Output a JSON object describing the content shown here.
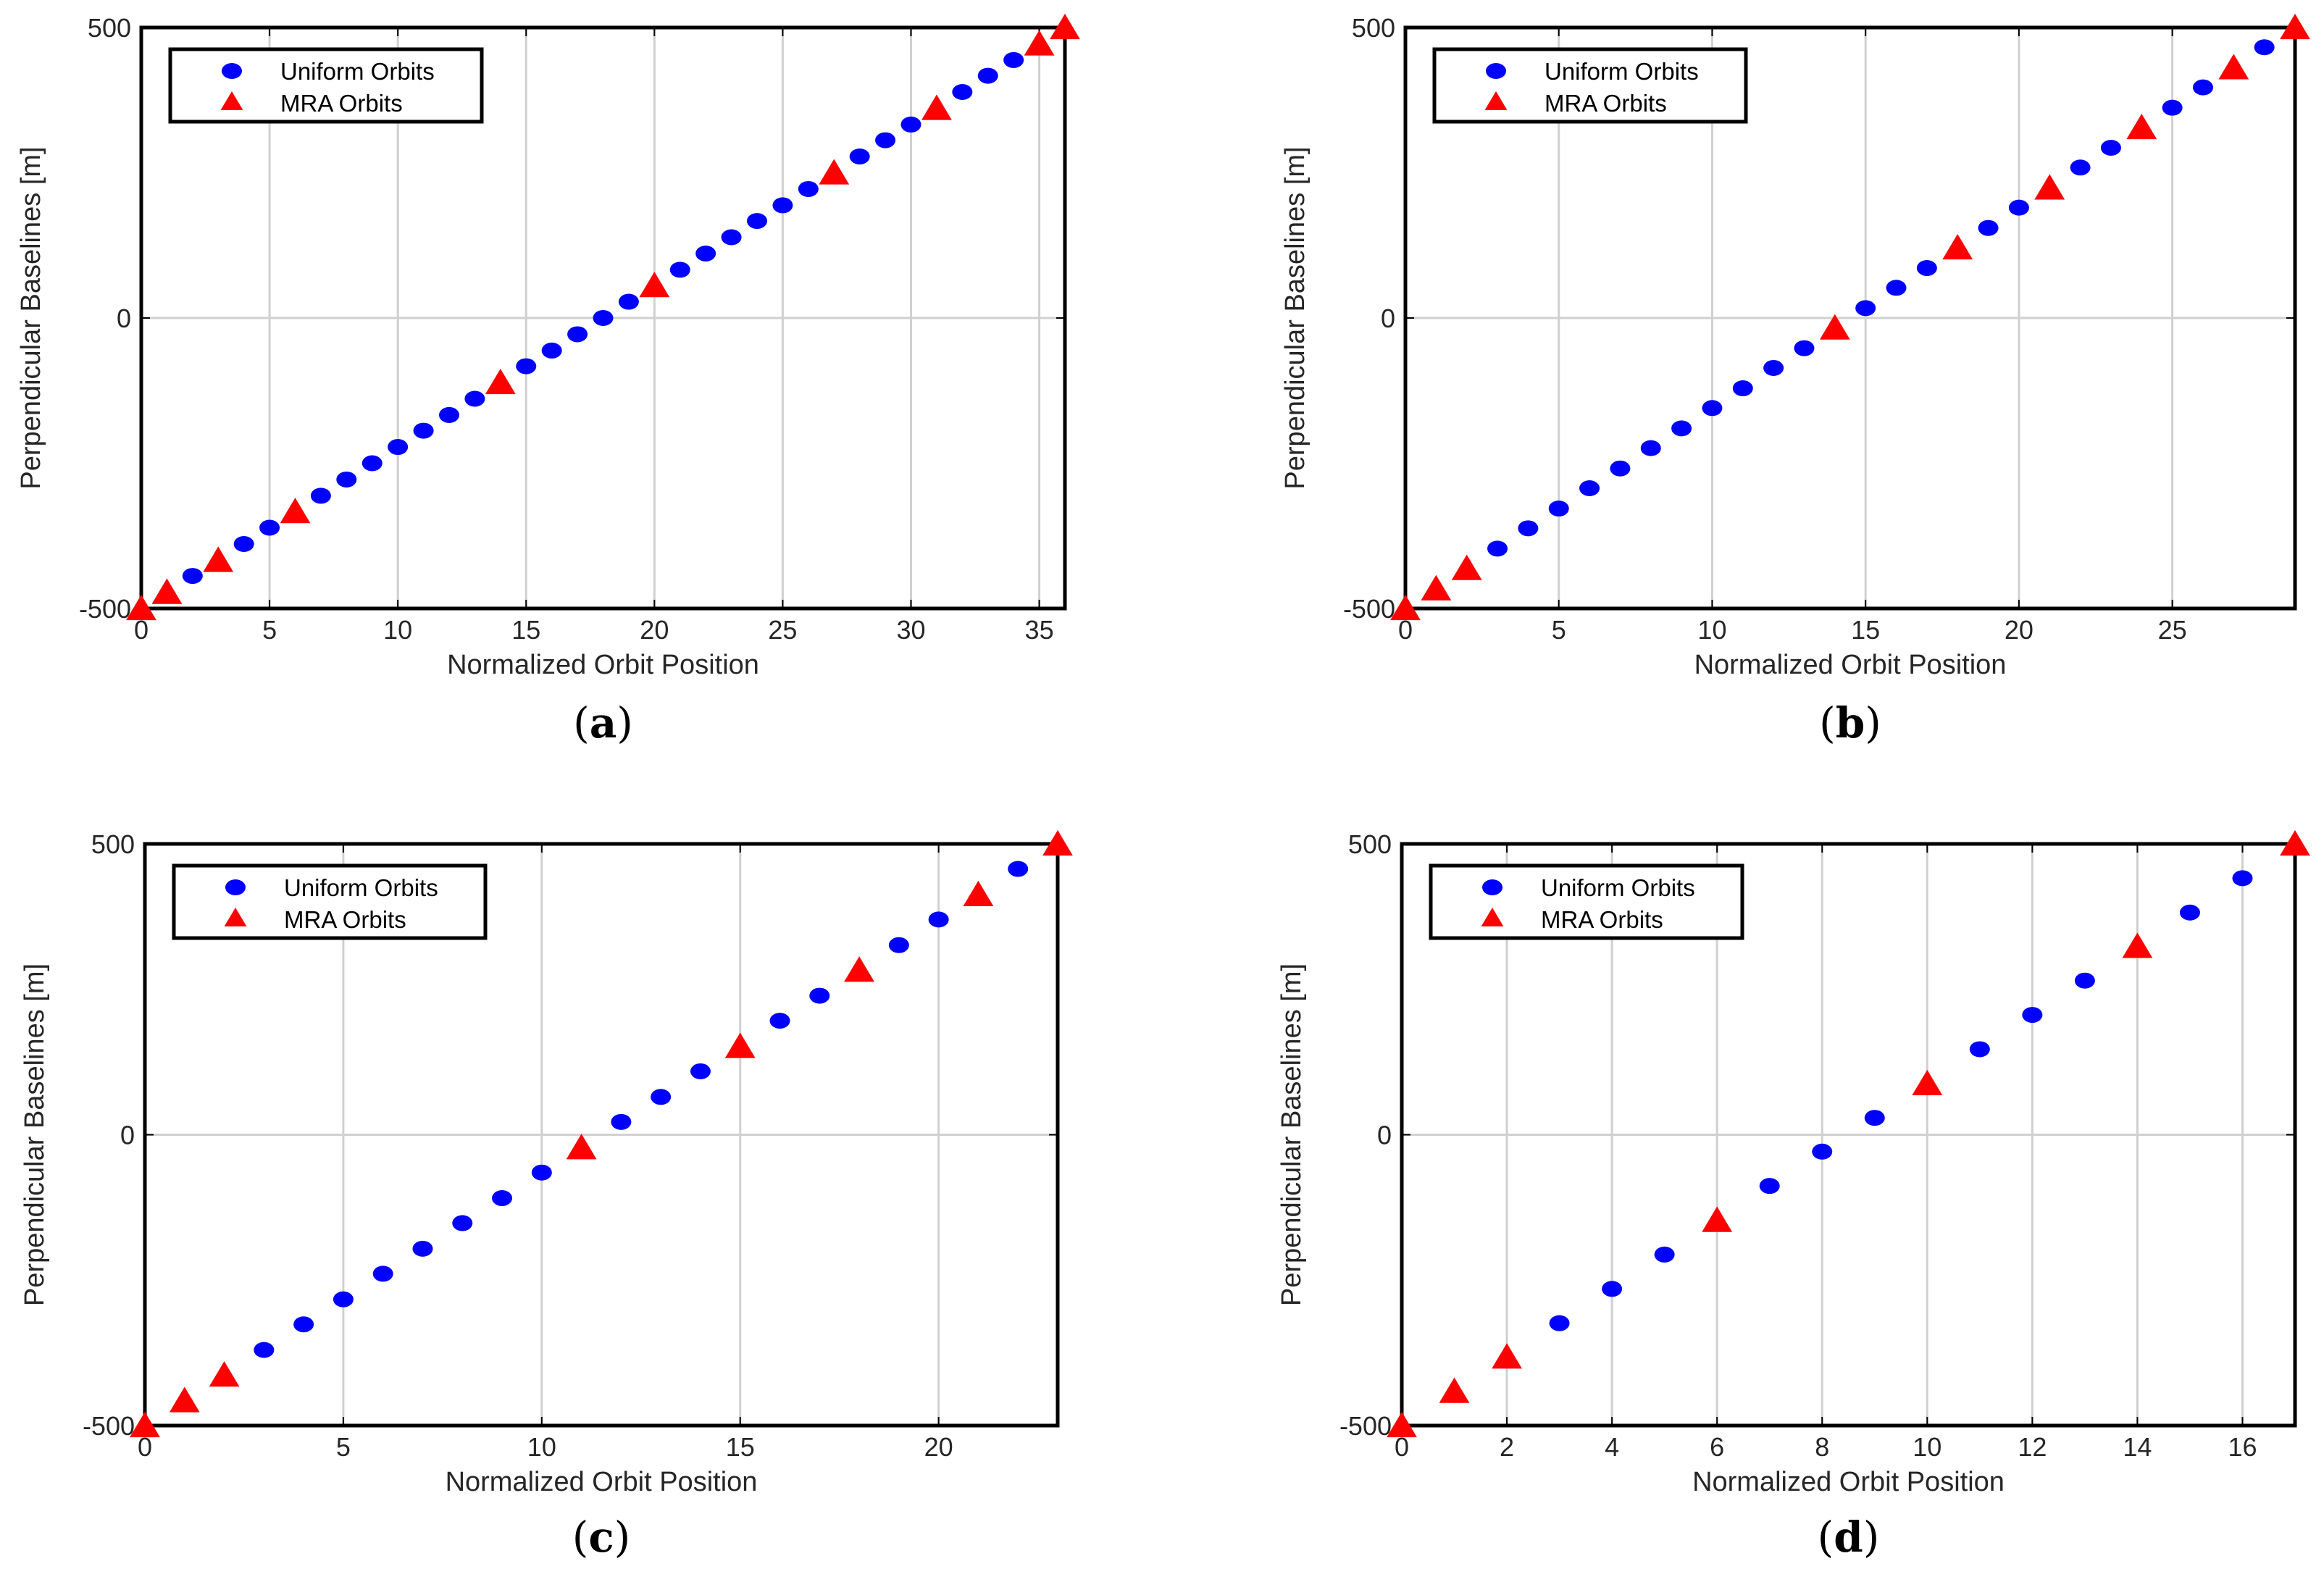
{
  "colors": {
    "uniform": "#0000ff",
    "mra": "#ff0000",
    "grid": "#d0d0d0",
    "axis": "#000000"
  },
  "chart_data": [
    {
      "type": "scatter",
      "caption": "a",
      "xlabel": "Normalized Orbit Position",
      "ylabel": "Perpendicular Baselines [m]",
      "xlim": [
        0,
        36
      ],
      "ylim": [
        -500,
        500
      ],
      "xticks": [
        0,
        5,
        10,
        15,
        20,
        25,
        30,
        35
      ],
      "yticks": [
        -500,
        0,
        500
      ],
      "grid": true,
      "legend": "top-left",
      "series": [
        {
          "name": "Uniform Orbits",
          "marker": "circle",
          "x": [
            2,
            4,
            5,
            7,
            8,
            9,
            10,
            11,
            12,
            13,
            15,
            16,
            17,
            18,
            19,
            21,
            22,
            23,
            24,
            25,
            26,
            28,
            29,
            30,
            32,
            33,
            34
          ],
          "y": [
            -444,
            -389,
            -361,
            -306,
            -278,
            -250,
            -222,
            -194,
            -167,
            -139,
            -83,
            -56,
            -28,
            0,
            28,
            83,
            111,
            139,
            167,
            194,
            222,
            278,
            306,
            333,
            389,
            417,
            444
          ]
        },
        {
          "name": "MRA Orbits",
          "marker": "triangle",
          "x": [
            0,
            1,
            3,
            6,
            14,
            20,
            27,
            31,
            35,
            36
          ],
          "y": [
            -500,
            -472,
            -417,
            -333,
            -111,
            56,
            250,
            361,
            472,
            500
          ]
        }
      ]
    },
    {
      "type": "scatter",
      "caption": "b",
      "xlabel": "Normalized Orbit Position",
      "ylabel": "Perpendicular Baselines [m]",
      "xlim": [
        0,
        29
      ],
      "ylim": [
        -500,
        500
      ],
      "xticks": [
        0,
        5,
        10,
        15,
        20,
        25
      ],
      "yticks": [
        -500,
        0,
        500
      ],
      "grid": true,
      "legend": "top-left",
      "series": [
        {
          "name": "Uniform Orbits",
          "marker": "circle",
          "x": [
            3,
            4,
            5,
            6,
            7,
            8,
            9,
            10,
            11,
            12,
            13,
            15,
            16,
            17,
            19,
            20,
            22,
            23,
            25,
            26,
            28
          ],
          "y": [
            -397,
            -362,
            -328,
            -293,
            -259,
            -224,
            -190,
            -155,
            -121,
            -86,
            -52,
            17,
            52,
            86,
            155,
            190,
            259,
            293,
            362,
            397,
            466
          ]
        },
        {
          "name": "MRA Orbits",
          "marker": "triangle",
          "x": [
            0,
            1,
            2,
            14,
            18,
            21,
            24,
            27,
            29
          ],
          "y": [
            -500,
            -466,
            -431,
            -17,
            121,
            224,
            328,
            431,
            500
          ]
        }
      ]
    },
    {
      "type": "scatter",
      "caption": "c",
      "xlabel": "Normalized Orbit Position",
      "ylabel": "Perpendicular Baselines [m]",
      "xlim": [
        0,
        23
      ],
      "ylim": [
        -500,
        500
      ],
      "xticks": [
        0,
        5,
        10,
        15,
        20
      ],
      "yticks": [
        -500,
        0,
        500
      ],
      "grid": true,
      "legend": "top-left",
      "series": [
        {
          "name": "Uniform Orbits",
          "marker": "circle",
          "x": [
            3,
            4,
            5,
            6,
            7,
            8,
            9,
            10,
            12,
            13,
            14,
            16,
            17,
            19,
            20,
            22
          ],
          "y": [
            -370,
            -326,
            -283,
            -239,
            -196,
            -152,
            -109,
            -65,
            22,
            65,
            109,
            196,
            239,
            326,
            370,
            457
          ]
        },
        {
          "name": "MRA Orbits",
          "marker": "triangle",
          "x": [
            0,
            1,
            2,
            11,
            15,
            18,
            21,
            23
          ],
          "y": [
            -500,
            -457,
            -413,
            -22,
            152,
            283,
            413,
            500
          ]
        }
      ]
    },
    {
      "type": "scatter",
      "caption": "d",
      "xlabel": "Normalized Orbit Position",
      "ylabel": "Perpendicular Baselines [m]",
      "xlim": [
        0,
        17
      ],
      "ylim": [
        -500,
        500
      ],
      "xticks": [
        0,
        2,
        4,
        6,
        8,
        10,
        12,
        14,
        16
      ],
      "yticks": [
        -500,
        0,
        500
      ],
      "grid": true,
      "legend": "top-left",
      "series": [
        {
          "name": "Uniform Orbits",
          "marker": "circle",
          "x": [
            3,
            4,
            5,
            7,
            8,
            9,
            11,
            12,
            13,
            15,
            16
          ],
          "y": [
            -324,
            -265,
            -206,
            -88,
            -29,
            29,
            147,
            206,
            265,
            382,
            441
          ]
        },
        {
          "name": "MRA Orbits",
          "marker": "triangle",
          "x": [
            0,
            1,
            2,
            6,
            10,
            14,
            17
          ],
          "y": [
            -500,
            -441,
            -382,
            -147,
            88,
            324,
            500
          ]
        }
      ]
    }
  ],
  "captions": [
    {
      "open": "(",
      "letter": "a",
      "close": ")"
    },
    {
      "open": "(",
      "letter": "b",
      "close": ")"
    },
    {
      "open": "(",
      "letter": "c",
      "close": ")"
    },
    {
      "open": "(",
      "letter": "d",
      "close": ")"
    }
  ]
}
